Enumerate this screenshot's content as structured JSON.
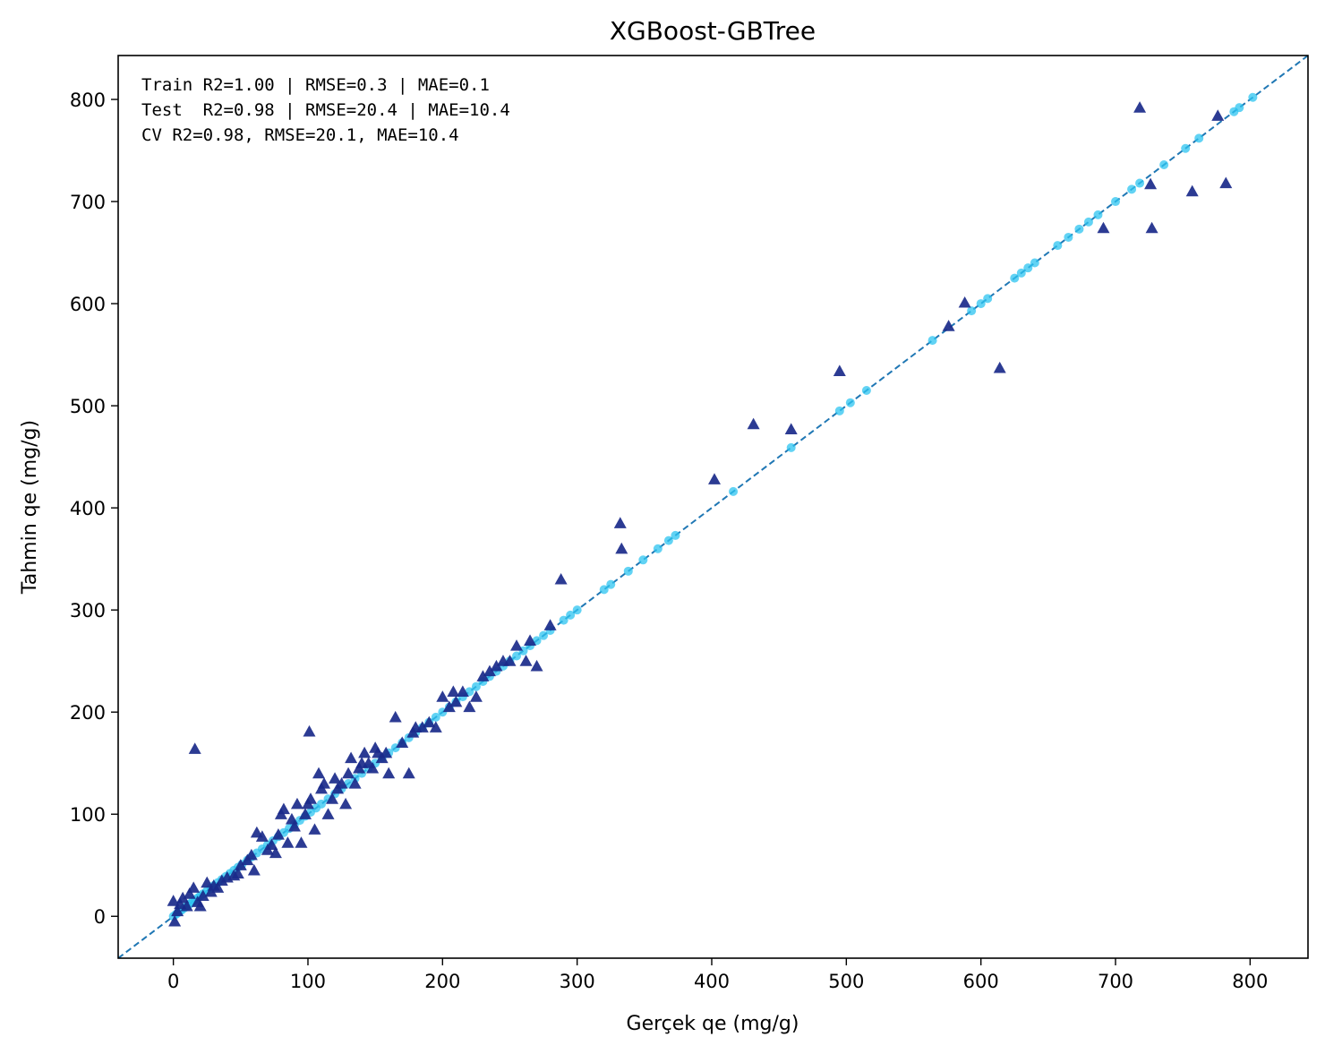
{
  "chart_data": {
    "type": "scatter",
    "title": "XGBoost-GBTree",
    "xlabel": "Gerçek qe (mg/g)",
    "ylabel": "Tahmin qe (mg/g)",
    "xlim": [
      -41,
      843
    ],
    "ylim": [
      -41,
      843
    ],
    "xticks": [
      0,
      100,
      200,
      300,
      400,
      500,
      600,
      700,
      800
    ],
    "yticks": [
      0,
      100,
      200,
      300,
      400,
      500,
      600,
      700,
      800
    ],
    "grid": false,
    "annotations": [
      "Train R2=1.00 | RMSE=0.3 | MAE=0.1",
      "Test  R2=0.98 | RMSE=20.4 | MAE=10.4",
      "CV R2=0.98, RMSE=20.1, MAE=10.4"
    ],
    "reference_line": {
      "x": [
        -41,
        843
      ],
      "y": [
        -41,
        843
      ],
      "color": "#1f77b4",
      "style": "dashed"
    },
    "series": [
      {
        "marker": "circle",
        "color": "#2ec4f0",
        "x": [
          0,
          2,
          4,
          6,
          8,
          10,
          12,
          14,
          16,
          18,
          20,
          22,
          25,
          28,
          30,
          33,
          36,
          39,
          42,
          45,
          48,
          51,
          55,
          58,
          62,
          66,
          70,
          74,
          78,
          82,
          86,
          90,
          94,
          98,
          102,
          106,
          110,
          115,
          120,
          125,
          130,
          135,
          140,
          145,
          150,
          155,
          160,
          165,
          170,
          175,
          180,
          185,
          190,
          195,
          200,
          205,
          210,
          215,
          220,
          225,
          230,
          235,
          240,
          245,
          250,
          255,
          260,
          265,
          270,
          275,
          280,
          290,
          295,
          300,
          320,
          325,
          338,
          349,
          360,
          368,
          373,
          416,
          459,
          495,
          503,
          515,
          564,
          593,
          600,
          605,
          625,
          630,
          635,
          640,
          657,
          665,
          673,
          680,
          687,
          700,
          712,
          718,
          736,
          752,
          762,
          788,
          792,
          802
        ],
        "y": [
          0,
          2,
          4,
          6,
          8,
          10,
          12,
          14,
          16,
          18,
          20,
          22,
          25,
          28,
          30,
          33,
          36,
          39,
          42,
          45,
          48,
          51,
          55,
          58,
          62,
          66,
          70,
          74,
          78,
          82,
          86,
          90,
          94,
          98,
          102,
          106,
          110,
          115,
          120,
          125,
          130,
          135,
          140,
          145,
          150,
          155,
          160,
          165,
          170,
          175,
          180,
          185,
          190,
          195,
          200,
          205,
          210,
          215,
          220,
          225,
          230,
          235,
          240,
          245,
          250,
          255,
          260,
          265,
          270,
          275,
          280,
          290,
          295,
          300,
          320,
          325,
          338,
          349,
          360,
          368,
          373,
          416,
          459,
          495,
          503,
          515,
          564,
          593,
          600,
          605,
          625,
          630,
          635,
          640,
          657,
          665,
          673,
          680,
          687,
          700,
          712,
          718,
          736,
          752,
          762,
          788,
          792,
          802
        ]
      },
      {
        "marker": "triangle",
        "color": "#1a2a8a",
        "x": [
          0,
          1,
          3,
          5,
          7,
          10,
          12,
          15,
          18,
          20,
          22,
          25,
          28,
          30,
          33,
          36,
          40,
          45,
          48,
          50,
          55,
          58,
          60,
          62,
          66,
          70,
          73,
          76,
          78,
          80,
          82,
          85,
          88,
          90,
          92,
          95,
          98,
          100,
          102,
          105,
          108,
          110,
          112,
          115,
          118,
          120,
          122,
          125,
          128,
          130,
          132,
          135,
          138,
          140,
          142,
          145,
          148,
          150,
          152,
          155,
          158,
          160,
          165,
          170,
          175,
          178,
          180,
          185,
          190,
          195,
          200,
          205,
          208,
          210,
          215,
          220,
          225,
          230,
          235,
          240,
          245,
          250,
          255,
          262,
          265,
          270,
          280,
          288,
          332,
          333,
          402,
          431,
          459,
          495,
          576,
          588,
          614,
          691,
          718,
          726,
          727,
          757,
          776,
          782,
          16,
          101
        ],
        "y": [
          15,
          -5,
          5,
          12,
          18,
          10,
          22,
          28,
          14,
          10,
          20,
          33,
          24,
          30,
          28,
          35,
          38,
          40,
          42,
          50,
          55,
          60,
          45,
          82,
          78,
          65,
          70,
          62,
          80,
          100,
          105,
          72,
          95,
          88,
          110,
          72,
          100,
          110,
          115,
          85,
          140,
          125,
          130,
          100,
          115,
          135,
          125,
          130,
          110,
          140,
          155,
          130,
          145,
          150,
          160,
          150,
          145,
          165,
          160,
          155,
          160,
          140,
          195,
          170,
          140,
          180,
          185,
          185,
          190,
          185,
          215,
          205,
          220,
          210,
          220,
          205,
          215,
          235,
          240,
          245,
          250,
          250,
          265,
          250,
          270,
          245,
          285,
          330,
          385,
          360,
          428,
          482,
          477,
          534,
          578,
          601,
          537,
          674,
          792,
          717,
          674,
          710,
          784,
          718,
          164,
          181
        ]
      }
    ]
  }
}
